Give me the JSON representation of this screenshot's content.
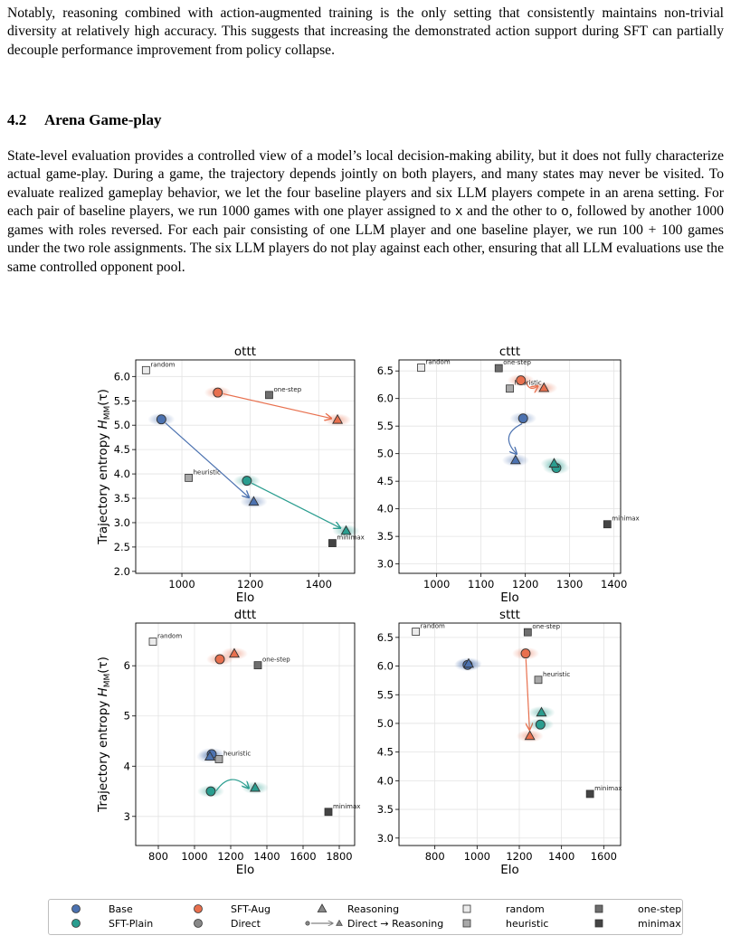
{
  "intro_paragraph": "Notably, reasoning combined with action-augmented training is the only setting that consistently maintains non-trivial diversity at relatively high accuracy. This suggests that increasing the demonstrated action support during SFT can partially decouple performance improvement from policy collapse.",
  "section": {
    "number": "4.2",
    "title": "Arena Game-play"
  },
  "body_paragraph": {
    "part1": "State-level evaluation provides a controlled view of a model’s local decision-making ability, but it does not fully characterize actual game-play. During a game, the trajectory depends jointly on both players, and many states may never be visited. To evaluate realized gameplay behavior, we let the four baseline players and six LLM players compete in an arena setting. For each pair of baseline players, we run 1000 games with one player assigned to ",
    "x": "x",
    "part2": " and the other to ",
    "o": "o",
    "part3": ", followed by another 1000 games with roles reversed. For each pair consisting of one LLM player and one baseline player, we run ",
    "math": "100 + 100",
    "part4": " games under the two role assignments. The six LLM players do not play against each other, ensuring that all LLM evaluations use the same controlled opponent pool."
  },
  "colors": {
    "base": "#4c72b0",
    "sft_aug": "#e8704e",
    "sft_plain": "#2a9d8f",
    "direct": "#888888",
    "random": "#ebebeb",
    "heuristic": "#a9a9a9",
    "one_step": "#6e6e6e",
    "minimax": "#444444"
  },
  "chart_data": [
    {
      "type": "scatter",
      "title": "ottt",
      "xlabel": "Elo",
      "ylabel": "Trajectory entropy H_MM(τ)",
      "xlim": [
        865,
        1505
      ],
      "ylim": [
        1.96,
        6.34
      ],
      "xticks": [
        1000,
        1200,
        1400
      ],
      "yticks": [
        2.0,
        2.5,
        3.0,
        3.5,
        4.0,
        4.5,
        5.0,
        5.5,
        6.0
      ],
      "ytick_labels": [
        "2.0",
        "2.5",
        "3.0",
        "3.5",
        "4.0",
        "4.5",
        "5.0",
        "5.5",
        "6.0"
      ],
      "grid": true,
      "baselines": [
        {
          "name": "random",
          "x": 895,
          "y": 6.13
        },
        {
          "name": "one-step",
          "x": 1255,
          "y": 5.62
        },
        {
          "name": "heuristic",
          "x": 1020,
          "y": 3.92
        },
        {
          "name": "minimax",
          "x": 1440,
          "y": 2.58
        }
      ],
      "llm_points": [
        {
          "model": "SFT-Aug",
          "mode": "Direct",
          "x": 1105,
          "y": 5.67
        },
        {
          "model": "SFT-Aug",
          "mode": "Reasoning",
          "x": 1455,
          "y": 5.11
        },
        {
          "model": "Base",
          "mode": "Direct",
          "x": 940,
          "y": 5.12
        },
        {
          "model": "Base",
          "mode": "Reasoning",
          "x": 1210,
          "y": 3.43
        },
        {
          "model": "SFT-Plain",
          "mode": "Direct",
          "x": 1190,
          "y": 3.86
        },
        {
          "model": "SFT-Plain",
          "mode": "Reasoning",
          "x": 1480,
          "y": 2.83
        }
      ],
      "arrows": [
        {
          "model": "SFT-Aug",
          "curve": 0
        },
        {
          "model": "Base",
          "curve": 0
        },
        {
          "model": "SFT-Plain",
          "curve": 0
        }
      ]
    },
    {
      "type": "scatter",
      "title": "cttt",
      "xlabel": "Elo",
      "ylabel": "",
      "xlim": [
        915,
        1415
      ],
      "ylim": [
        2.83,
        6.7
      ],
      "xticks": [
        1000,
        1100,
        1200,
        1300,
        1400
      ],
      "yticks": [
        3.0,
        3.5,
        4.0,
        4.5,
        5.0,
        5.5,
        6.0,
        6.5
      ],
      "ytick_labels": [
        "3.0",
        "3.5",
        "4.0",
        "4.5",
        "5.0",
        "5.5",
        "6.0",
        "6.5"
      ],
      "grid": true,
      "baselines": [
        {
          "name": "random",
          "x": 965,
          "y": 6.56
        },
        {
          "name": "one-step",
          "x": 1140,
          "y": 6.55
        },
        {
          "name": "heuristic",
          "x": 1165,
          "y": 6.18
        },
        {
          "name": "minimax",
          "x": 1385,
          "y": 3.72
        }
      ],
      "llm_points": [
        {
          "model": "SFT-Aug",
          "mode": "Direct",
          "x": 1190,
          "y": 6.33
        },
        {
          "model": "SFT-Aug",
          "mode": "Reasoning",
          "x": 1242,
          "y": 6.19
        },
        {
          "model": "Base",
          "mode": "Direct",
          "x": 1195,
          "y": 5.64
        },
        {
          "model": "Base",
          "mode": "Reasoning",
          "x": 1178,
          "y": 4.88
        },
        {
          "model": "SFT-Plain",
          "mode": "Direct",
          "x": 1270,
          "y": 4.74
        },
        {
          "model": "SFT-Plain",
          "mode": "Reasoning",
          "x": 1265,
          "y": 4.82
        }
      ],
      "arrows": [
        {
          "model": "SFT-Aug",
          "curve": 0.35
        },
        {
          "model": "Base",
          "curve": 0.5
        }
      ]
    },
    {
      "type": "scatter",
      "title": "dttt",
      "xlabel": "Elo",
      "ylabel": "Trajectory entropy H_MM(τ)",
      "xlim": [
        675,
        1885
      ],
      "ylim": [
        2.42,
        6.85
      ],
      "xticks": [
        800,
        1000,
        1200,
        1400,
        1600,
        1800
      ],
      "yticks": [
        3,
        4,
        5,
        6
      ],
      "ytick_labels": [
        "3",
        "4",
        "5",
        "6"
      ],
      "grid": true,
      "baselines": [
        {
          "name": "random",
          "x": 770,
          "y": 6.48
        },
        {
          "name": "one-step",
          "x": 1350,
          "y": 6.01
        },
        {
          "name": "heuristic",
          "x": 1135,
          "y": 4.14
        },
        {
          "name": "minimax",
          "x": 1740,
          "y": 3.09
        }
      ],
      "llm_points": [
        {
          "model": "SFT-Aug",
          "mode": "Direct",
          "x": 1140,
          "y": 6.13
        },
        {
          "model": "SFT-Aug",
          "mode": "Reasoning",
          "x": 1220,
          "y": 6.24
        },
        {
          "model": "Base",
          "mode": "Direct",
          "x": 1095,
          "y": 4.24
        },
        {
          "model": "Base",
          "mode": "Reasoning",
          "x": 1085,
          "y": 4.19
        },
        {
          "model": "SFT-Plain",
          "mode": "Direct",
          "x": 1090,
          "y": 3.5
        },
        {
          "model": "SFT-Plain",
          "mode": "Reasoning",
          "x": 1335,
          "y": 3.57
        }
      ],
      "arrows": [
        {
          "model": "SFT-Plain",
          "curve": -0.45
        }
      ]
    },
    {
      "type": "scatter",
      "title": "sttt",
      "xlabel": "Elo",
      "ylabel": "",
      "xlim": [
        630,
        1680
      ],
      "ylim": [
        2.87,
        6.75
      ],
      "xticks": [
        800,
        1000,
        1200,
        1400,
        1600
      ],
      "yticks": [
        3.0,
        3.5,
        4.0,
        4.5,
        5.0,
        5.5,
        6.0,
        6.5
      ],
      "ytick_labels": [
        "3.0",
        "3.5",
        "4.0",
        "4.5",
        "5.0",
        "5.5",
        "6.0",
        "6.5"
      ],
      "grid": true,
      "baselines": [
        {
          "name": "random",
          "x": 710,
          "y": 6.6
        },
        {
          "name": "one-step",
          "x": 1240,
          "y": 6.59
        },
        {
          "name": "heuristic",
          "x": 1290,
          "y": 5.76
        },
        {
          "name": "minimax",
          "x": 1535,
          "y": 3.77
        }
      ],
      "llm_points": [
        {
          "model": "SFT-Aug",
          "mode": "Direct",
          "x": 1230,
          "y": 6.22
        },
        {
          "model": "SFT-Aug",
          "mode": "Reasoning",
          "x": 1250,
          "y": 4.78
        },
        {
          "model": "Base",
          "mode": "Direct",
          "x": 955,
          "y": 6.02
        },
        {
          "model": "Base",
          "mode": "Reasoning",
          "x": 960,
          "y": 6.04
        },
        {
          "model": "SFT-Plain",
          "mode": "Direct",
          "x": 1300,
          "y": 4.98
        },
        {
          "model": "SFT-Plain",
          "mode": "Reasoning",
          "x": 1305,
          "y": 5.19
        }
      ],
      "arrows": [
        {
          "model": "SFT-Aug",
          "curve": 0
        }
      ]
    }
  ],
  "legend": [
    {
      "label": "Base",
      "marker": "circle",
      "color": "#4c72b0"
    },
    {
      "label": "SFT-Plain",
      "marker": "circle",
      "color": "#2a9d8f"
    },
    {
      "label": "SFT-Aug",
      "marker": "circle",
      "color": "#e8704e"
    },
    {
      "label": "Direct",
      "marker": "circle",
      "color": "#888888"
    },
    {
      "label": "Reasoning",
      "marker": "triangle",
      "color": "#888888"
    },
    {
      "label": "Direct → Reasoning",
      "marker": "arrow",
      "color": "#888888"
    },
    {
      "label": "random",
      "marker": "square",
      "color": "#ebebeb"
    },
    {
      "label": "heuristic",
      "marker": "square",
      "color": "#a9a9a9"
    },
    {
      "label": "one-step",
      "marker": "square",
      "color": "#6e6e6e"
    },
    {
      "label": "minimax",
      "marker": "square",
      "color": "#444444"
    }
  ]
}
